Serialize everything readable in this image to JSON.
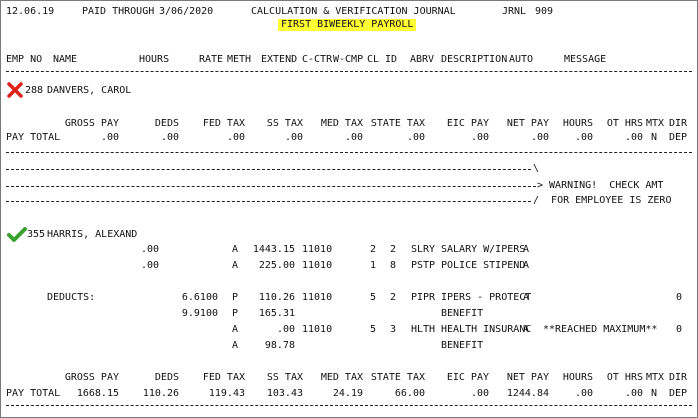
{
  "header": {
    "date": "12.06.19",
    "paid_through_label": "PAID THROUGH",
    "paid_through_date": "3/06/2020",
    "title": "CALCULATION & VERIFICATION JOURNAL",
    "jrnl_label": "JRNL",
    "jrnl_number": "909",
    "subtitle": "FIRST BIWEEKLY PAYROLL"
  },
  "columns": {
    "emp_no": "EMP NO",
    "name": "NAME",
    "hours": "HOURS",
    "rate": "RATE",
    "meth": "METH",
    "extend": "EXTEND",
    "cctr": "C-CTR",
    "wcmp": "W-CMP",
    "cl": "CL",
    "id": "ID",
    "abrv": "ABRV",
    "description": "DESCRIPTION",
    "auto": "AUTO",
    "message": "MESSAGE"
  },
  "totals_headers": {
    "gross_pay": "GROSS PAY",
    "deds": "DEDS",
    "fed_tax": "FED TAX",
    "ss_tax": "SS TAX",
    "med_tax": "MED TAX",
    "state_tax": "STATE TAX",
    "eic_pay": "EIC PAY",
    "net_pay": "NET PAY",
    "hours": "HOURS",
    "ot_hrs": "OT HRS",
    "mtx": "MTX",
    "dir": "DIR",
    "n": "N",
    "dep": "DEP"
  },
  "employee1": {
    "status_icon": "red-x-icon",
    "status_color": "#e0201b",
    "number": "288",
    "name": "DANVERS, CAROL",
    "totals": {
      "label": "PAY TOTAL",
      "gross_pay": ".00",
      "deds": ".00",
      "fed_tax": ".00",
      "ss_tax": ".00",
      "med_tax": ".00",
      "state_tax": ".00",
      "eic_pay": ".00",
      "net_pay": ".00",
      "hours": ".00",
      "ot_hrs": ".00"
    },
    "warning_line1": "> WARNING!  CHECK AMT",
    "warning_line2": "/  FOR EMPLOYEE IS ZERO",
    "warning_backslash": "\\"
  },
  "employee2": {
    "status_icon": "green-check-icon",
    "status_color": "#3aa02e",
    "number": "355",
    "name": "HARRIS, ALEXAND",
    "earnings": [
      {
        "hours": ".00",
        "meth": "A",
        "extend": "1443.15",
        "cctr": "11010",
        "cl": "2",
        "id": "2",
        "abrv": "SLRY",
        "description": "SALARY W/IPERS",
        "auto": "A"
      },
      {
        "hours": ".00",
        "meth": "A",
        "extend": "225.00",
        "cctr": "11010",
        "cl": "1",
        "id": "8",
        "abrv": "PSTP",
        "description": "POLICE STIPEND",
        "auto": "A"
      }
    ],
    "deducts_label": "DEDUCTS:",
    "deductions": [
      {
        "rate": "6.6100",
        "meth": "P",
        "extend": "110.26",
        "cctr": "11010",
        "cl": "5",
        "id": "2",
        "abrv": "PIPR",
        "description": "IPERS - PROTECT",
        "auto": "A",
        "message": "",
        "flag": "0"
      },
      {
        "rate": "9.9100",
        "meth": "P",
        "extend": "165.31",
        "cctr": "",
        "cl": "",
        "id": "",
        "abrv": "",
        "description": "BENEFIT",
        "auto": "",
        "message": "",
        "flag": ""
      },
      {
        "rate": "",
        "meth": "A",
        "extend": ".00",
        "cctr": "11010",
        "cl": "5",
        "id": "3",
        "abrv": "HLTH",
        "description": "HEALTH INSURANC",
        "auto": "A",
        "message": "**REACHED MAXIMUM**",
        "flag": "0"
      },
      {
        "rate": "",
        "meth": "A",
        "extend": "98.78",
        "cctr": "",
        "cl": "",
        "id": "",
        "abrv": "",
        "description": "BENEFIT",
        "auto": "",
        "message": "",
        "flag": ""
      }
    ],
    "totals": {
      "label": "PAY TOTAL",
      "gross_pay": "1668.15",
      "deds": "110.26",
      "fed_tax": "119.43",
      "ss_tax": "103.43",
      "med_tax": "24.19",
      "state_tax": "66.00",
      "eic_pay": ".00",
      "net_pay": "1244.84",
      "hours": ".00",
      "ot_hrs": ".00",
      "mtx": "N",
      "dir": "DEP"
    }
  }
}
